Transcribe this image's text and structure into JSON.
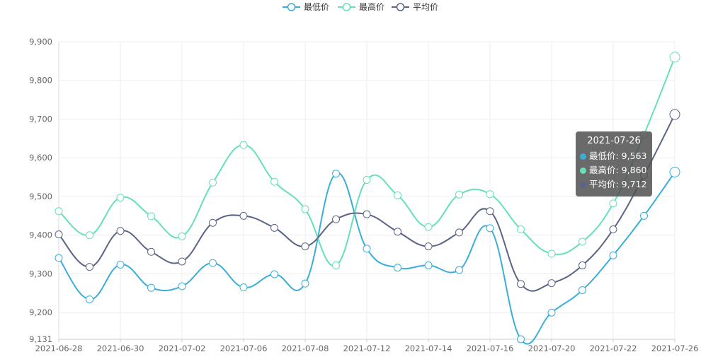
{
  "chart_data": {
    "type": "line",
    "smooth": true,
    "x": [
      "2021-06-28",
      "2021-06-29",
      "2021-06-30",
      "2021-07-01",
      "2021-07-02",
      "2021-07-05",
      "2021-07-06",
      "2021-07-07",
      "2021-07-08",
      "2021-07-09",
      "2021-07-12",
      "2021-07-13",
      "2021-07-14",
      "2021-07-15",
      "2021-07-16",
      "2021-07-19",
      "2021-07-20",
      "2021-07-21",
      "2021-07-22",
      "2021-07-23",
      "2021-07-26"
    ],
    "xtick_labels": [
      "2021-06-28",
      "2021-06-30",
      "2021-07-02",
      "2021-07-06",
      "2021-07-08",
      "2021-07-12",
      "2021-07-14",
      "2021-07-16",
      "2021-07-20",
      "2021-07-22",
      "2021-07-26"
    ],
    "ylim": [
      9131,
      9900
    ],
    "yticks": [
      9900,
      9800,
      9700,
      9600,
      9500,
      9400,
      9300,
      9200,
      9131
    ],
    "ytick_labels": [
      "9,900",
      "9,800",
      "9,700",
      "9,600",
      "9,500",
      "9,400",
      "9,300",
      "9,200",
      "9,131"
    ],
    "grid": true,
    "legend_position": "top-center",
    "series": [
      {
        "name": "最低价",
        "color": "#3aaed8",
        "values": [
          9341,
          9234,
          9324,
          9264,
          9268,
          9328,
          9265,
          9299,
          9275,
          9559,
          9365,
          9316,
          9322,
          9310,
          9418,
          9131,
          9200,
          9258,
          9348,
          9450,
          9563
        ]
      },
      {
        "name": "最高价",
        "color": "#66e0b8",
        "values": [
          9462,
          9400,
          9497,
          9449,
          9397,
          9536,
          9633,
          9538,
          9467,
          9322,
          9543,
          9503,
          9421,
          9505,
          9506,
          9415,
          9352,
          9383,
          9482,
          9660,
          9860
        ]
      },
      {
        "name": "平均价",
        "color": "#5a6487",
        "values": [
          9402,
          9318,
          9411,
          9357,
          9332,
          9432,
          9450,
          9419,
          9371,
          9441,
          9454,
          9409,
          9371,
          9407,
          9462,
          9274,
          9276,
          9322,
          9415,
          9555,
          9712
        ]
      }
    ],
    "tooltip": {
      "title": "2021-07-26",
      "rows": [
        {
          "label": "最低价: 9,563",
          "color": "#3aaed8"
        },
        {
          "label": "最高价: 9,860",
          "color": "#66e0b8"
        },
        {
          "label": "平均价: 9,712",
          "color": "#5a6487"
        }
      ]
    }
  }
}
